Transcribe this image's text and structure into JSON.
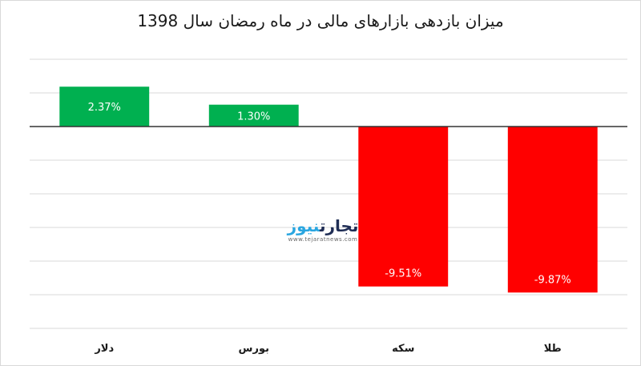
{
  "chart_data": {
    "type": "bar",
    "title": "میزان بازدهی بازارهای مالی در ماه رمضان سال 1398",
    "categories": [
      "دلار",
      "بورس",
      "سکه",
      "طلا"
    ],
    "values": [
      2.37,
      1.3,
      -9.51,
      -9.87
    ],
    "data_labels": [
      "2.37%",
      "1.30%",
      "-9.51%",
      "-9.87%"
    ],
    "ylim": [
      -12,
      4
    ],
    "grid": true,
    "legend": "none",
    "colors": {
      "positive": "#00b050",
      "negative": "#ff0000"
    }
  },
  "watermark": {
    "name_part1": "تجارت",
    "name_part2": "نیوز",
    "url": "www.tejaratnews.com"
  }
}
